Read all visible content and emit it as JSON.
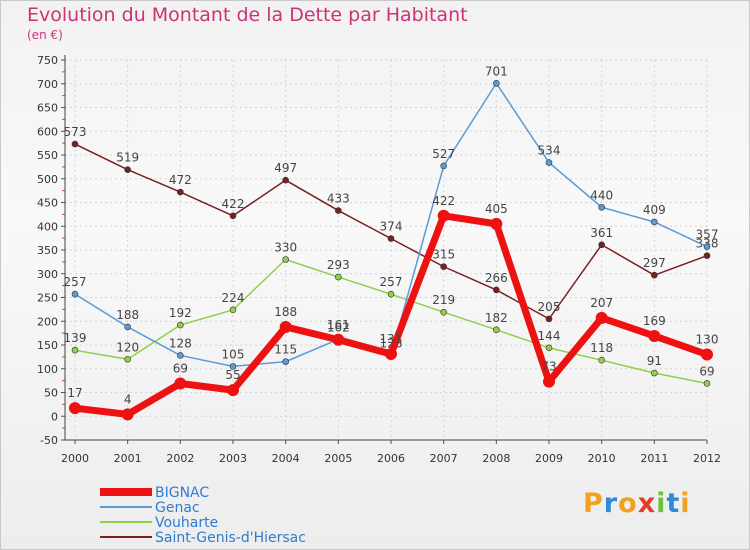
{
  "title": "Evolution du Montant de la Dette par Habitant",
  "subtitle": "(en €)",
  "logo": {
    "text": "Proxiti",
    "letters": [
      {
        "ch": "P",
        "color": "#f2a020"
      },
      {
        "ch": "r",
        "color": "#2f8ad8"
      },
      {
        "ch": "o",
        "color": "#f2a020"
      },
      {
        "ch": "x",
        "color": "#e83a2a"
      },
      {
        "ch": "i",
        "color": "#6cc23a"
      },
      {
        "ch": "t",
        "color": "#2f8ad8"
      },
      {
        "ch": "i",
        "color": "#f2a020"
      }
    ]
  },
  "chart_data": {
    "type": "line",
    "title": "Evolution du Montant de la Dette par Habitant",
    "ylabel": "(en €)",
    "xlabel": "",
    "x": [
      "2000",
      "2001",
      "2002",
      "2003",
      "2004",
      "2005",
      "2006",
      "2007",
      "2008",
      "2009",
      "2010",
      "2011",
      "2012"
    ],
    "ylim": [
      -50,
      750
    ],
    "yticks": [
      -50,
      0,
      50,
      100,
      150,
      200,
      250,
      300,
      350,
      400,
      450,
      500,
      550,
      600,
      650,
      700,
      750
    ],
    "grid": true,
    "legend_position": "bottom-left",
    "series": [
      {
        "name": "Saint-Genis-d'Hiersac",
        "color": "#7a2020",
        "stroke": 1.5,
        "marker": 3,
        "values": [
          573,
          519,
          472,
          422,
          497,
          433,
          374,
          315,
          266,
          205,
          361,
          297,
          338
        ]
      },
      {
        "name": "Vouharte",
        "color": "#8ed04a",
        "stroke": 1.5,
        "marker": 3,
        "values": [
          139,
          120,
          192,
          224,
          330,
          293,
          257,
          219,
          182,
          144,
          118,
          91,
          69
        ]
      },
      {
        "name": "Genac",
        "color": "#5b9bd5",
        "stroke": 1.5,
        "marker": 3,
        "values": [
          257,
          188,
          128,
          105,
          115,
          162,
          128,
          527,
          701,
          534,
          440,
          409,
          357
        ]
      },
      {
        "name": "BIGNAC",
        "color": "#ee1111",
        "stroke": 7,
        "marker": 6,
        "values": [
          17,
          4,
          69,
          55,
          188,
          161,
          131,
          422,
          405,
          73,
          207,
          169,
          130
        ]
      }
    ],
    "legend": [
      "BIGNAC",
      "Genac",
      "Vouharte",
      "Saint-Genis-d'Hiersac"
    ]
  }
}
